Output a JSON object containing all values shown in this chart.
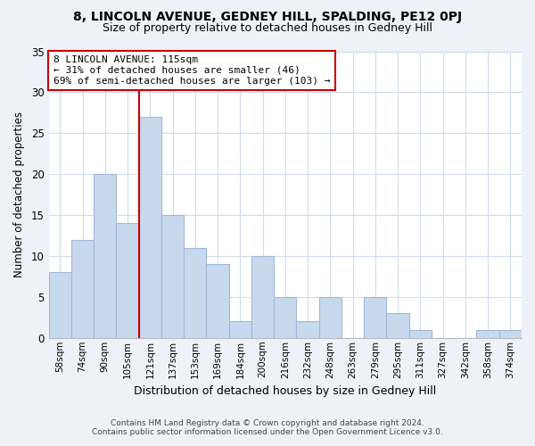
{
  "title": "8, LINCOLN AVENUE, GEDNEY HILL, SPALDING, PE12 0PJ",
  "subtitle": "Size of property relative to detached houses in Gedney Hill",
  "xlabel": "Distribution of detached houses by size in Gedney Hill",
  "ylabel": "Number of detached properties",
  "footer_line1": "Contains HM Land Registry data © Crown copyright and database right 2024.",
  "footer_line2": "Contains public sector information licensed under the Open Government Licence v3.0.",
  "bar_labels": [
    "58sqm",
    "74sqm",
    "90sqm",
    "105sqm",
    "121sqm",
    "137sqm",
    "153sqm",
    "169sqm",
    "184sqm",
    "200sqm",
    "216sqm",
    "232sqm",
    "248sqm",
    "263sqm",
    "279sqm",
    "295sqm",
    "311sqm",
    "327sqm",
    "342sqm",
    "358sqm",
    "374sqm"
  ],
  "bar_values": [
    8,
    12,
    20,
    14,
    27,
    15,
    11,
    9,
    2,
    10,
    5,
    2,
    5,
    0,
    5,
    3,
    1,
    0,
    0,
    1,
    1
  ],
  "bar_color": "#c8d9ee",
  "bar_edge_color": "#a0b8d8",
  "vline_index": 4,
  "vline_color": "#cc0000",
  "ylim": [
    0,
    35
  ],
  "yticks": [
    0,
    5,
    10,
    15,
    20,
    25,
    30,
    35
  ],
  "annotation_line1": "8 LINCOLN AVENUE: 115sqm",
  "annotation_line2": "← 31% of detached houses are smaller (46)",
  "annotation_line3": "69% of semi-detached houses are larger (103) →",
  "annotation_box_color": "#ffffff",
  "annotation_box_edge": "#cc0000",
  "bg_color": "#eef2f8",
  "plot_bg_color": "#ffffff"
}
